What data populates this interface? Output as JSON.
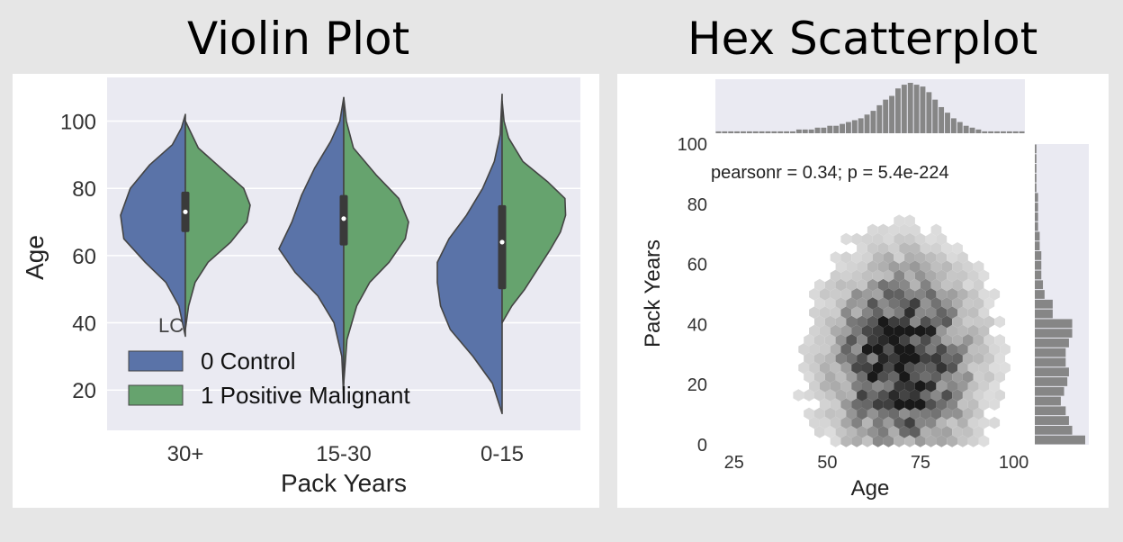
{
  "titles": {
    "left": "Violin Plot",
    "right": "Hex Scatterplot"
  },
  "chart_data": [
    {
      "type": "violin",
      "title": "Violin Plot",
      "xlabel": "Pack Years",
      "ylabel": "Age",
      "categories": [
        "30+",
        "15-30",
        "0-15"
      ],
      "yticks": [
        20,
        40,
        60,
        80,
        100
      ],
      "ylim": [
        8,
        113
      ],
      "grid": true,
      "legend": {
        "title": "LC",
        "placement": "lower-left",
        "entries": [
          {
            "label": "0 Control",
            "color": "#5a73a8"
          },
          {
            "label": "1 Positive Malignant",
            "color": "#66a36e"
          }
        ]
      },
      "series": [
        {
          "name": "0 Control",
          "color": "#5a73a8",
          "side": "left",
          "profiles": [
            [
              [
                36,
                0
              ],
              [
                45,
                0.1
              ],
              [
                52,
                0.3
              ],
              [
                58,
                0.62
              ],
              [
                65,
                0.95
              ],
              [
                72,
                1.0
              ],
              [
                80,
                0.85
              ],
              [
                87,
                0.55
              ],
              [
                93,
                0.2
              ],
              [
                98,
                0.06
              ],
              [
                102,
                0
              ]
            ],
            [
              [
                17,
                0
              ],
              [
                30,
                0.03
              ],
              [
                40,
                0.15
              ],
              [
                48,
                0.4
              ],
              [
                55,
                0.75
              ],
              [
                62,
                1.0
              ],
              [
                70,
                0.8
              ],
              [
                78,
                0.65
              ],
              [
                86,
                0.45
              ],
              [
                94,
                0.2
              ],
              [
                100,
                0.06
              ],
              [
                107,
                0
              ]
            ],
            [
              [
                13,
                0
              ],
              [
                22,
                0.15
              ],
              [
                30,
                0.45
              ],
              [
                38,
                0.8
              ],
              [
                45,
                0.95
              ],
              [
                52,
                1.0
              ],
              [
                58,
                1.0
              ],
              [
                65,
                0.82
              ],
              [
                72,
                0.55
              ],
              [
                80,
                0.3
              ],
              [
                88,
                0.12
              ],
              [
                96,
                0.03
              ],
              [
                108,
                0
              ]
            ]
          ]
        },
        {
          "name": "1 Positive Malignant",
          "color": "#66a36e",
          "side": "right",
          "profiles": [
            [
              [
                38,
                0
              ],
              [
                45,
                0.05
              ],
              [
                52,
                0.15
              ],
              [
                58,
                0.35
              ],
              [
                64,
                0.7
              ],
              [
                70,
                0.95
              ],
              [
                75,
                1.0
              ],
              [
                80,
                0.9
              ],
              [
                86,
                0.55
              ],
              [
                92,
                0.2
              ],
              [
                100,
                0
              ]
            ],
            [
              [
                22,
                0
              ],
              [
                35,
                0.05
              ],
              [
                45,
                0.2
              ],
              [
                52,
                0.4
              ],
              [
                58,
                0.7
              ],
              [
                65,
                0.95
              ],
              [
                70,
                1.0
              ],
              [
                77,
                0.85
              ],
              [
                84,
                0.5
              ],
              [
                92,
                0.15
              ],
              [
                100,
                0.04
              ],
              [
                107,
                0
              ]
            ],
            [
              [
                40,
                0
              ],
              [
                45,
                0.15
              ],
              [
                50,
                0.35
              ],
              [
                56,
                0.55
              ],
              [
                62,
                0.75
              ],
              [
                67,
                0.9
              ],
              [
                72,
                0.98
              ],
              [
                77,
                0.97
              ],
              [
                82,
                0.7
              ],
              [
                88,
                0.32
              ],
              [
                95,
                0.1
              ],
              [
                100,
                0.03
              ],
              [
                106,
                0
              ]
            ]
          ]
        }
      ],
      "box": [
        {
          "category": "30+",
          "q1": 67,
          "median": 73,
          "q3": 79
        },
        {
          "category": "15-30",
          "q1": 63,
          "median": 71,
          "q3": 78
        },
        {
          "category": "0-15",
          "q1": 50,
          "median": 64,
          "q3": 75
        }
      ]
    },
    {
      "type": "hexbin",
      "title": "Hex Scatterplot",
      "xlabel": "Age",
      "ylabel": "Pack Years",
      "annotation": "pearsonr = 0.34; p = 5.4e-224",
      "xticks": [
        25,
        50,
        75,
        100
      ],
      "yticks": [
        0,
        20,
        40,
        60,
        80,
        100
      ],
      "xlim": [
        20,
        103
      ],
      "ylim": [
        0,
        100
      ],
      "x_marginal_hist": [
        1,
        1,
        1,
        1,
        1,
        1,
        1,
        1,
        1,
        1,
        1,
        1,
        1,
        2,
        2,
        2,
        3,
        3,
        4,
        4,
        5,
        6,
        7,
        8,
        10,
        12,
        15,
        18,
        20,
        24,
        26,
        27,
        26,
        25,
        22,
        18,
        14,
        11,
        8,
        6,
        4,
        3,
        2,
        1,
        1,
        1,
        1,
        1,
        1,
        1
      ],
      "y_marginal_hist": [
        31,
        23,
        21,
        19,
        16,
        18,
        20,
        21,
        19,
        19,
        21,
        23,
        23,
        11,
        11,
        6,
        5,
        4,
        4,
        4,
        3,
        3,
        2,
        2,
        2,
        2,
        1,
        1,
        1,
        1,
        1
      ],
      "hex_center": {
        "age": 70,
        "pack_years": 28
      },
      "color": "#404040"
    }
  ]
}
